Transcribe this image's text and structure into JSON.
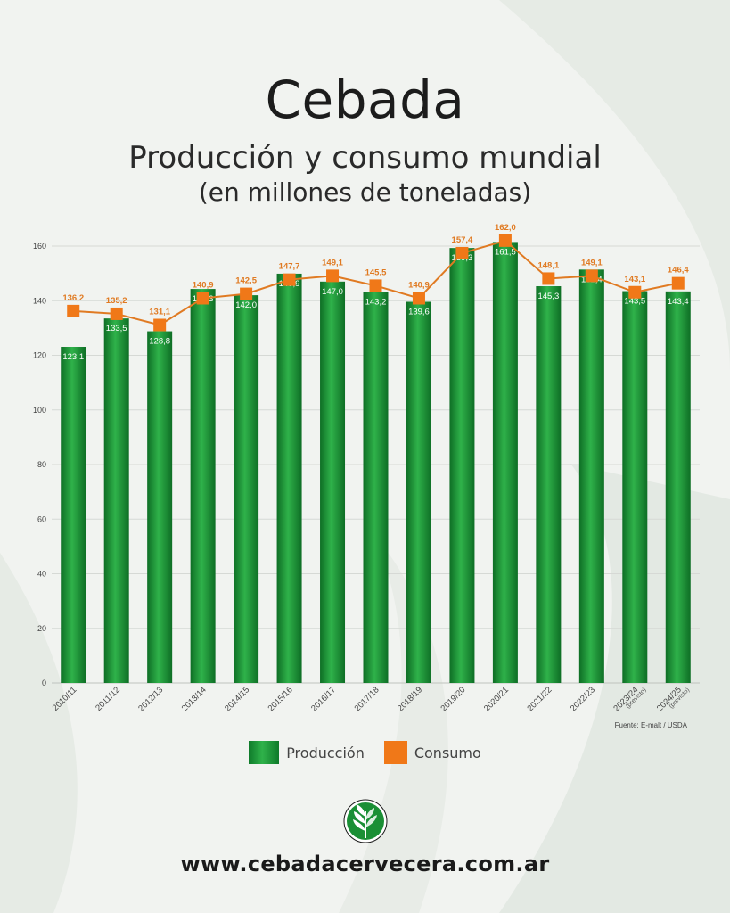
{
  "page": {
    "title": "Cebada",
    "subtitle": "Producción y consumo mundial",
    "subtitle2": "(en millones de toneladas)",
    "source": "Fuente: E-malt / USDA",
    "website": "www.cebadacervecera.com.ar",
    "colors": {
      "bar": "#1a8f35",
      "bar_light": "#2fb24a",
      "bar_dark": "#0e6e25",
      "line": "#e07a22",
      "marker": "#f07818",
      "label_line": "#e07a22",
      "label_bar": "#ffffff"
    }
  },
  "chart_data": {
    "type": "bar",
    "categories": [
      "2010/11",
      "2011/12",
      "2012/13",
      "2013/14",
      "2014/15",
      "2015/16",
      "2016/17",
      "2017/18",
      "2018/19",
      "2019/20",
      "2020/21",
      "2021/22",
      "2022/23",
      "2023/24",
      "2024/25"
    ],
    "category_notes": [
      "",
      "",
      "",
      "",
      "",
      "",
      "",
      "",
      "",
      "",
      "",
      "",
      "",
      "(previsto)",
      "(previsto)"
    ],
    "series": [
      {
        "name": "Producción",
        "kind": "bar",
        "values": [
          123.1,
          133.5,
          128.8,
          144.3,
          142.0,
          149.9,
          147.0,
          143.2,
          139.6,
          159.3,
          161.5,
          145.3,
          151.4,
          143.5,
          143.4
        ],
        "labels": [
          "123,1",
          "133,5",
          "128,8",
          "144,3",
          "142,0",
          "149,9",
          "147,0",
          "143,2",
          "139,6",
          "159,3",
          "161,5",
          "145,3",
          "151,4",
          "143,5",
          "143,4"
        ]
      },
      {
        "name": "Consumo",
        "kind": "line",
        "values": [
          136.2,
          135.2,
          131.1,
          140.9,
          142.5,
          147.7,
          149.1,
          145.5,
          140.9,
          157.4,
          162.0,
          148.1,
          149.1,
          143.1,
          146.4
        ],
        "labels": [
          "136,2",
          "135,2",
          "131,1",
          "140,9",
          "142,5",
          "147,7",
          "149,1",
          "145,5",
          "140,9",
          "157,4",
          "162,0",
          "148,1",
          "149,1",
          "143,1",
          "146,4"
        ]
      }
    ],
    "ylim": [
      0,
      160
    ],
    "yticks": [
      "0",
      "20",
      "40",
      "60",
      "80",
      "100",
      "120",
      "140",
      "160"
    ],
    "grid": true,
    "legend": "bottom-center"
  }
}
